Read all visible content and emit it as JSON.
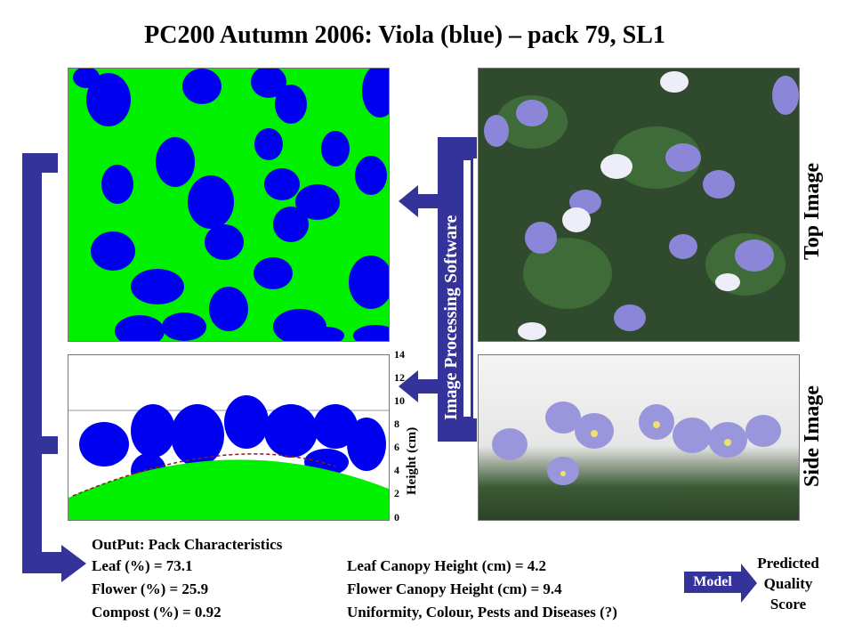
{
  "title": "PC200 Autumn 2006: Viola (blue) – pack 79, SL1",
  "labels": {
    "top_image": "Top Image",
    "side_image": "Side Image",
    "image_processing": "Image Processing Software",
    "y_axis": "Height (cm)",
    "y_ticks": [
      "0",
      "2",
      "4",
      "6",
      "8",
      "10",
      "12",
      "14"
    ]
  },
  "output": {
    "heading": "OutPut: Pack Characteristics",
    "left": [
      "Leaf (%) = 73.1",
      "Flower (%) = 25.9",
      "Compost (%) = 0.92"
    ],
    "right": [
      "Leaf Canopy Height (cm) = 4.2",
      "Flower Canopy Height (cm) = 9.4",
      "Uniformity, Colour, Pests and Diseases (?)"
    ]
  },
  "model": {
    "label": "Model",
    "result": [
      "Predicted",
      "Quality",
      "Score"
    ]
  },
  "colors": {
    "arrow": "#33339a",
    "leaf": "#00f000",
    "flower": "#0000ff"
  }
}
